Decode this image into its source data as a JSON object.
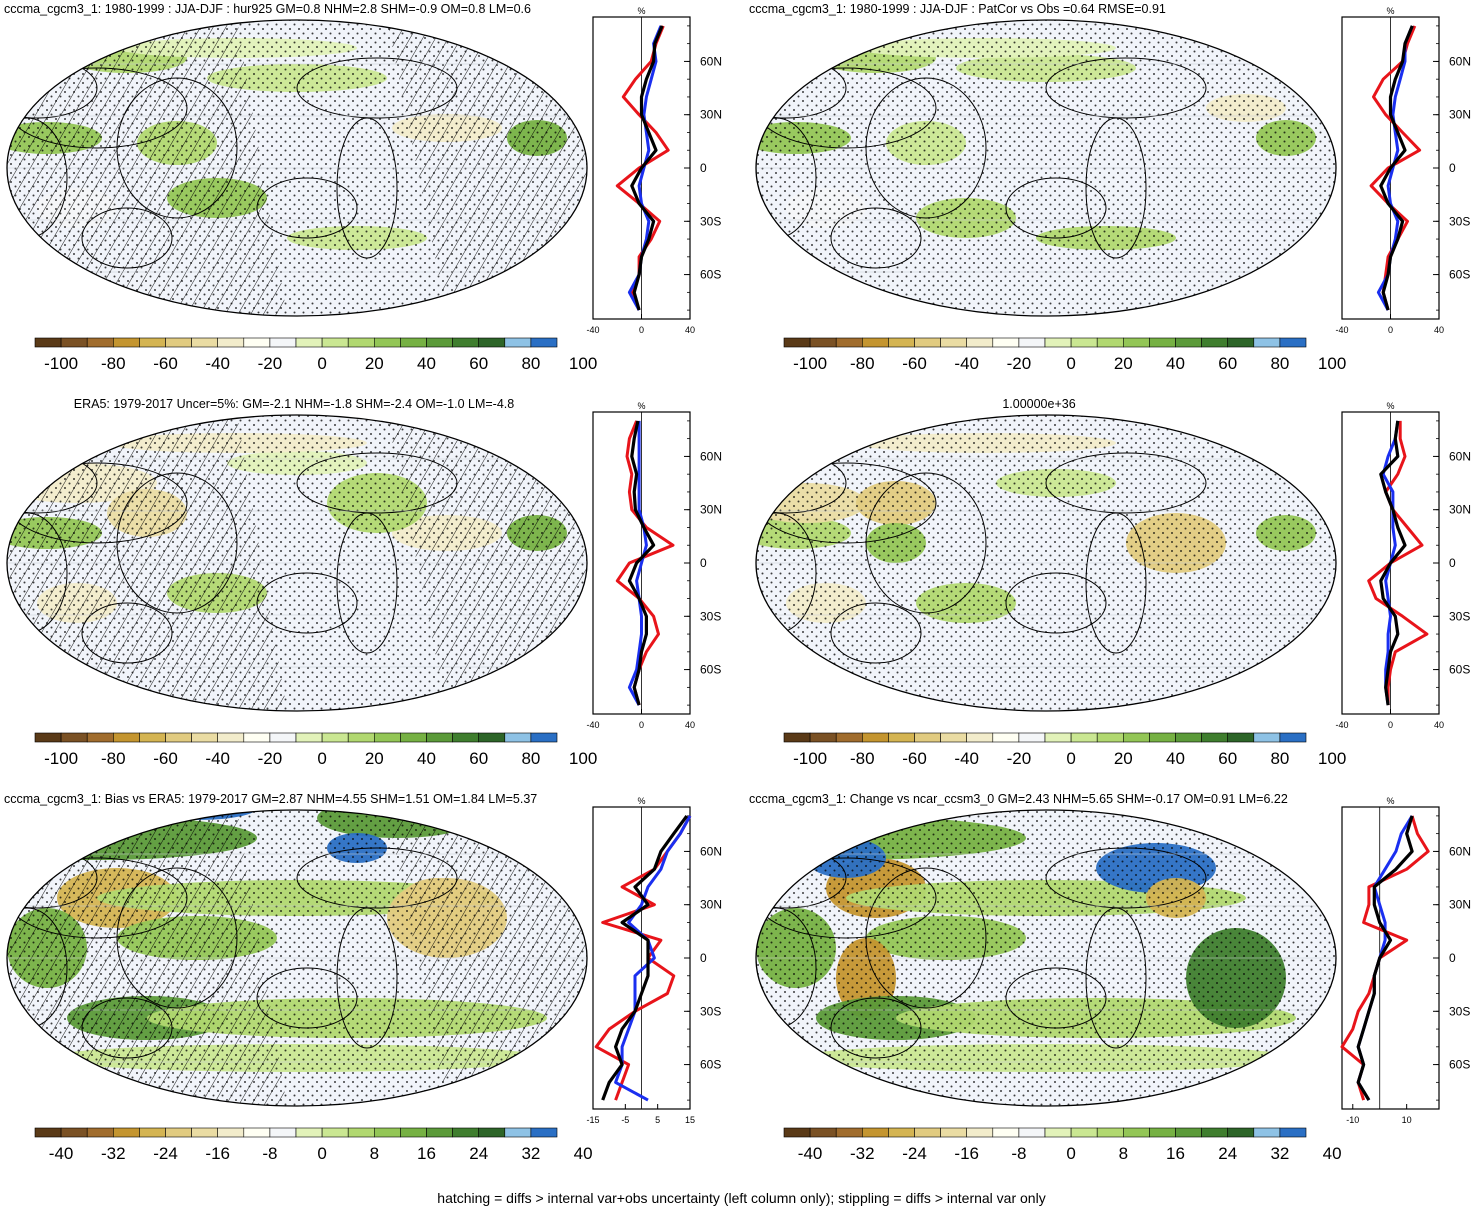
{
  "colors": {
    "ocean": "#f1f4fa",
    "coast": "#000000",
    "obs_line": "#e8141a",
    "model_line": "#1a2ff0",
    "mmm_line": "#000000",
    "palette": [
      "#5a3a17",
      "#7a5124",
      "#a06c2d",
      "#c4952f",
      "#d4b452",
      "#e1cb80",
      "#eadca3",
      "#f2eccb",
      "#fffff3",
      "#f4f6f8",
      "#e2f2b9",
      "#cae792",
      "#b1d870",
      "#93c656",
      "#76b143",
      "#5b9a39",
      "#3f7e2e",
      "#2d6528",
      "#8ec2e5",
      "#2a6fc4"
    ]
  },
  "footer": "hatching = diffs > internal var+obs uncertainty (left column only); stippling = diffs > internal var only",
  "lat_ticks": [
    "60N",
    "30N",
    "0",
    "30S",
    "60S"
  ],
  "chart_data": [
    {
      "type": "heatmap",
      "title": "cccma_cgcm3_1: 1980-1999 : JJA-DJF : hur925 GM=0.8 NHM=2.8 SHM=-0.9 OM=0.8 LM=0.6",
      "colorbar_labels": [
        "-100",
        "-80",
        "-60",
        "-40",
        "-20",
        "0",
        "20",
        "40",
        "60",
        "80",
        "100"
      ],
      "zonal_mean": {
        "unit": "%",
        "xlim": [
          -40,
          40
        ],
        "x_ticks": [
          "-40",
          "0",
          "40"
        ],
        "lat": [
          80,
          70,
          60,
          50,
          40,
          30,
          20,
          10,
          0,
          -10,
          -20,
          -30,
          -40,
          -50,
          -60,
          -70,
          -80
        ],
        "series": [
          {
            "name": "obs",
            "values": [
              18,
              12,
              8,
              -5,
              -15,
              -2,
              12,
              22,
              -2,
              -20,
              -2,
              15,
              8,
              -2,
              -2,
              -8,
              -2
            ]
          },
          {
            "name": "model",
            "values": [
              16,
              10,
              12,
              8,
              4,
              2,
              4,
              6,
              2,
              -2,
              0,
              6,
              4,
              0,
              -2,
              -10,
              -2
            ]
          },
          {
            "name": "mmm",
            "values": [
              17,
              11,
              10,
              4,
              0,
              0,
              6,
              12,
              0,
              -8,
              -2,
              10,
              6,
              0,
              -2,
              -6,
              -2
            ]
          }
        ]
      }
    },
    {
      "type": "heatmap",
      "title": "cccma_cgcm3_1: 1980-1999 : JJA-DJF : PatCor vs Obs =0.64 RMSE=0.91",
      "colorbar_labels": [
        "-100",
        "-80",
        "-60",
        "-40",
        "-20",
        "0",
        "20",
        "40",
        "60",
        "80",
        "100"
      ],
      "zonal_mean": {
        "unit": "%",
        "xlim": [
          -40,
          40
        ],
        "x_ticks": [
          "-40",
          "0",
          "40"
        ],
        "lat": [
          80,
          70,
          60,
          50,
          40,
          30,
          20,
          10,
          0,
          -10,
          -20,
          -30,
          -40,
          -50,
          -60,
          -70,
          -80
        ],
        "series": [
          {
            "name": "obs",
            "values": [
              20,
              14,
              10,
              -6,
              -14,
              -4,
              10,
              24,
              -2,
              -16,
              -2,
              14,
              6,
              -2,
              -4,
              -6,
              -2
            ]
          },
          {
            "name": "model",
            "values": [
              18,
              12,
              12,
              8,
              4,
              2,
              4,
              6,
              2,
              -2,
              0,
              6,
              4,
              0,
              -2,
              -10,
              -2
            ]
          },
          {
            "name": "mmm",
            "values": [
              18,
              12,
              10,
              4,
              0,
              0,
              6,
              12,
              0,
              -8,
              -2,
              10,
              6,
              0,
              -2,
              -6,
              -2
            ]
          }
        ]
      }
    },
    {
      "type": "heatmap",
      "title": "ERA5: 1979-2017 Uncer=5%: GM=-2.1 NHM=-1.8 SHM=-2.4 OM=-1.0 LM=-4.8",
      "colorbar_labels": [
        "-100",
        "-80",
        "-60",
        "-40",
        "-20",
        "0",
        "20",
        "40",
        "60",
        "80",
        "100"
      ],
      "zonal_mean": {
        "unit": "%",
        "xlim": [
          -40,
          40
        ],
        "x_ticks": [
          "-40",
          "0",
          "40"
        ],
        "lat": [
          80,
          70,
          60,
          50,
          40,
          30,
          20,
          10,
          0,
          -10,
          -20,
          -30,
          -40,
          -50,
          -60,
          -70,
          -80
        ],
        "series": [
          {
            "name": "obs",
            "values": [
              -4,
              -10,
              -12,
              -8,
              -10,
              -8,
              4,
              26,
              -10,
              -20,
              -2,
              10,
              14,
              4,
              -2,
              -6,
              -2
            ]
          },
          {
            "name": "model",
            "values": [
              -2,
              -2,
              -2,
              -2,
              -2,
              -2,
              2,
              4,
              0,
              -4,
              -2,
              0,
              0,
              -2,
              -4,
              -10,
              -2
            ]
          },
          {
            "name": "mmm",
            "values": [
              -3,
              -6,
              -8,
              -4,
              -6,
              -5,
              2,
              10,
              -4,
              -10,
              -2,
              4,
              4,
              0,
              -2,
              -6,
              -2
            ]
          }
        ]
      }
    },
    {
      "type": "heatmap",
      "title": "1.00000e+36",
      "colorbar_labels": [
        "-100",
        "-80",
        "-60",
        "-40",
        "-20",
        "0",
        "20",
        "40",
        "60",
        "80",
        "100"
      ],
      "zonal_mean": {
        "unit": "%",
        "xlim": [
          -40,
          40
        ],
        "x_ticks": [
          "-40",
          "0",
          "40"
        ],
        "lat": [
          80,
          70,
          60,
          50,
          40,
          30,
          20,
          10,
          0,
          -10,
          -20,
          -30,
          -40,
          -50,
          -60,
          -70,
          -80
        ],
        "series": [
          {
            "name": "obs",
            "values": [
              8,
              8,
              12,
              6,
              -4,
              2,
              14,
              26,
              0,
              -18,
              -12,
              10,
              30,
              4,
              0,
              -2,
              -2
            ]
          },
          {
            "name": "model",
            "values": [
              6,
              4,
              -2,
              -6,
              2,
              2,
              2,
              4,
              0,
              -4,
              -2,
              0,
              -2,
              -2,
              -4,
              -4,
              -2
            ]
          },
          {
            "name": "mmm",
            "values": [
              6,
              4,
              6,
              -8,
              -4,
              2,
              6,
              12,
              0,
              -8,
              -6,
              4,
              6,
              0,
              -2,
              -4,
              -2
            ]
          }
        ]
      }
    },
    {
      "type": "heatmap",
      "title": "cccma_cgcm3_1: Bias vs ERA5: 1979-2017 GM=2.87 NHM=4.55 SHM=1.51 OM=1.84 LM=5.37",
      "colorbar_labels": [
        "-40",
        "-32",
        "-24",
        "-16",
        "-8",
        "0",
        "8",
        "16",
        "24",
        "32",
        "40"
      ],
      "zonal_mean": {
        "unit": "%",
        "xlim": [
          -15,
          15
        ],
        "x_ticks": [
          "-15",
          "-5",
          "5",
          "15"
        ],
        "lat": [
          80,
          70,
          60,
          50,
          40,
          30,
          20,
          10,
          0,
          -10,
          -20,
          -30,
          -40,
          -50,
          -60,
          -70,
          -80
        ],
        "series": [
          {
            "name": "obs",
            "values": [
              15,
              12,
              8,
              4,
              -6,
              4,
              -12,
              6,
              2,
              10,
              8,
              -2,
              -10,
              -14,
              -4,
              -6,
              -8
            ]
          },
          {
            "name": "model",
            "values": [
              15,
              12,
              8,
              6,
              2,
              0,
              -4,
              2,
              4,
              -2,
              -2,
              -2,
              -4,
              -6,
              -6,
              -8,
              2
            ]
          },
          {
            "name": "mmm",
            "values": [
              14,
              10,
              6,
              4,
              -2,
              2,
              -6,
              2,
              2,
              2,
              0,
              -2,
              -6,
              -8,
              -6,
              -10,
              -12
            ]
          }
        ]
      }
    },
    {
      "type": "heatmap",
      "title": "cccma_cgcm3_1: Change vs ncar_ccsm3_0 GM=2.43 NHM=5.65 SHM=-0.17 OM=0.91 LM=6.22",
      "colorbar_labels": [
        "-40",
        "-32",
        "-24",
        "-16",
        "-8",
        "0",
        "8",
        "16",
        "24",
        "32",
        "40"
      ],
      "zonal_mean": {
        "unit": "%",
        "xlim": [
          -14,
          22
        ],
        "x_ticks": [
          "-10",
          "10"
        ],
        "lat": [
          80,
          70,
          60,
          50,
          40,
          30,
          20,
          10,
          0,
          -10,
          -20,
          -30,
          -40,
          -50,
          -60,
          -70,
          -80
        ],
        "series": [
          {
            "name": "obs",
            "values": [
              12,
              14,
              18,
              10,
              -4,
              -4,
              -6,
              10,
              0,
              -2,
              -4,
              -8,
              -10,
              -14,
              -6,
              -8,
              -6
            ]
          },
          {
            "name": "model",
            "values": [
              12,
              8,
              6,
              2,
              -2,
              0,
              2,
              2,
              0,
              -2,
              -2,
              -4,
              -6,
              -8,
              -6,
              -8,
              -4
            ]
          },
          {
            "name": "mmm",
            "values": [
              12,
              10,
              12,
              6,
              -2,
              -2,
              0,
              4,
              0,
              -2,
              -2,
              -4,
              -6,
              -8,
              -6,
              -8,
              -4
            ]
          }
        ]
      }
    }
  ]
}
